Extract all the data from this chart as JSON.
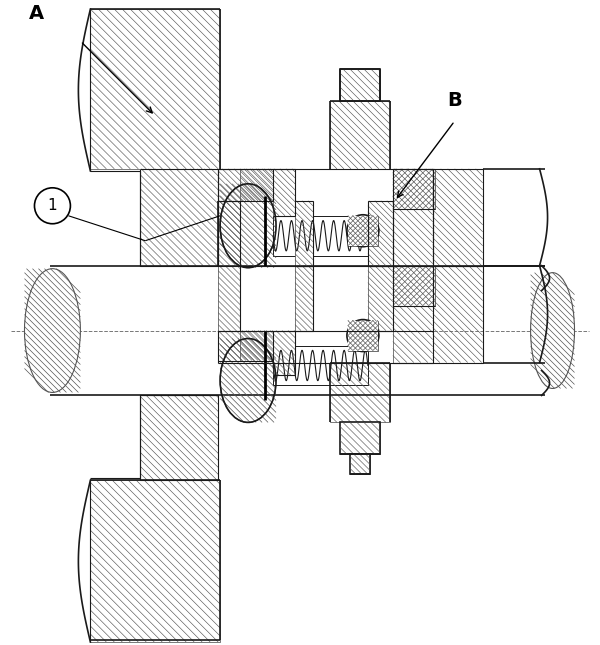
{
  "bg_color": "#ffffff",
  "line_color": "#1a1a1a",
  "figsize": [
    6.0,
    6.45
  ],
  "dpi": 100,
  "label_A": "A",
  "label_B": "B",
  "label_1": "1"
}
